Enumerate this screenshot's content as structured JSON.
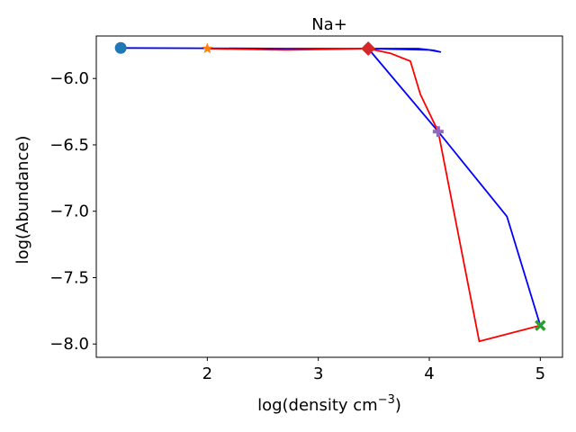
{
  "chart_data": {
    "type": "line",
    "title": "Na+",
    "xlabel_main": "log(density cm",
    "xlabel_sup": "−3",
    "xlabel_end": ")",
    "ylabel": "log(Abundance)",
    "xlim": [
      1.0,
      5.2
    ],
    "ylim": [
      -8.1,
      -5.68
    ],
    "x_ticks": [
      2,
      3,
      4,
      5
    ],
    "x_tick_labels": [
      "2",
      "3",
      "4",
      "5"
    ],
    "y_ticks": [
      -6.0,
      -6.5,
      -7.0,
      -7.5,
      -8.0
    ],
    "y_tick_labels": [
      "−6.0",
      "−6.5",
      "−7.0",
      "−7.5",
      "−8.0"
    ],
    "grid": false,
    "legend": "none",
    "series": [
      {
        "color": "#0000ff",
        "points": [
          [
            1.22,
            -5.77
          ],
          [
            2.0,
            -5.772
          ],
          [
            2.7,
            -5.775
          ],
          [
            3.45,
            -5.775
          ],
          [
            3.9,
            -5.775
          ],
          [
            4.05,
            -5.79
          ],
          [
            4.1,
            -5.8
          ],
          [
            4.0,
            -5.785
          ],
          [
            3.45,
            -5.775
          ],
          [
            4.08,
            -6.4
          ],
          [
            4.7,
            -7.04
          ],
          [
            5.0,
            -7.86
          ]
        ]
      },
      {
        "color": "#ff0000",
        "points": [
          [
            2.0,
            -5.775
          ],
          [
            2.7,
            -5.785
          ],
          [
            3.45,
            -5.775
          ],
          [
            3.65,
            -5.81
          ],
          [
            3.83,
            -5.87
          ],
          [
            3.92,
            -6.12
          ],
          [
            4.08,
            -6.4
          ],
          [
            4.45,
            -7.98
          ],
          [
            5.0,
            -7.86
          ]
        ]
      }
    ],
    "markers": [
      {
        "x": 1.22,
        "y": -5.77,
        "shape": "circle",
        "color": "#1f77b4"
      },
      {
        "x": 2.0,
        "y": -5.775,
        "shape": "star",
        "color": "#ff7f0e"
      },
      {
        "x": 3.45,
        "y": -5.775,
        "shape": "diamond",
        "color": "#d62728"
      },
      {
        "x": 4.08,
        "y": -6.4,
        "shape": "plus",
        "color": "#9467bd"
      },
      {
        "x": 5.0,
        "y": -7.86,
        "shape": "x",
        "color": "#2ca02c"
      }
    ]
  }
}
